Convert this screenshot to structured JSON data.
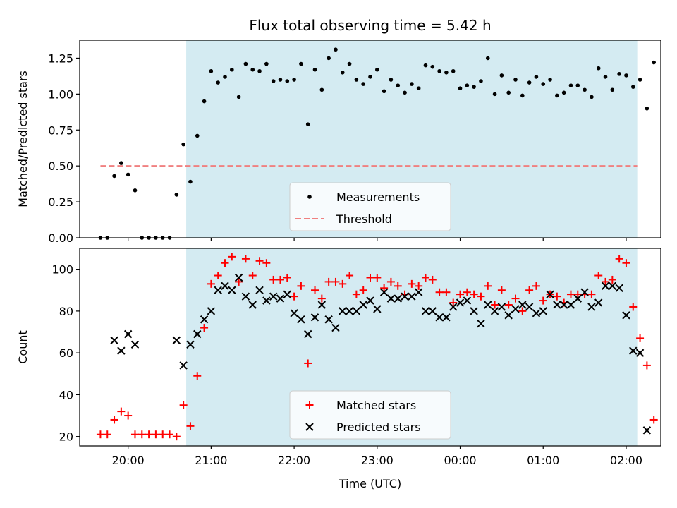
{
  "chart_data": [
    {
      "type": "scatter",
      "title": "Flux total observing time = 5.42 h",
      "xlabel": "",
      "ylabel": "Matched/Predicted stars",
      "ylim": [
        0,
        1.375
      ],
      "yticks": [
        "0.00",
        "0.25",
        "0.50",
        "0.75",
        "1.00",
        "1.25"
      ],
      "ytick_values": [
        0,
        0.25,
        0.5,
        0.75,
        1.0,
        1.25
      ],
      "xlim": [
        "19:25",
        "02:25"
      ],
      "xticks": [
        "20:00",
        "21:00",
        "22:00",
        "23:00",
        "00:00",
        "01:00",
        "02:00"
      ],
      "shaded_interval": [
        "20:42",
        "02:08"
      ],
      "shade_color": "#d4ebf2",
      "threshold": {
        "name": "Threshold",
        "value": 0.5,
        "x": [
          "19:40",
          "02:08"
        ],
        "color": "#f08080"
      },
      "legend": {
        "position": "lower center",
        "entries": [
          "Measurements",
          "Threshold"
        ]
      },
      "series": [
        {
          "name": "Measurements",
          "marker": "dot",
          "color": "#000000",
          "points": [
            [
              "19:40",
              0.0
            ],
            [
              "19:45",
              0.0
            ],
            [
              "19:50",
              0.43
            ],
            [
              "19:55",
              0.52
            ],
            [
              "20:00",
              0.44
            ],
            [
              "20:05",
              0.33
            ],
            [
              "20:10",
              0.0
            ],
            [
              "20:15",
              0.0
            ],
            [
              "20:20",
              0.0
            ],
            [
              "20:25",
              0.0
            ],
            [
              "20:30",
              0.0
            ],
            [
              "20:35",
              0.3
            ],
            [
              "20:40",
              0.65
            ],
            [
              "20:45",
              0.39
            ],
            [
              "20:50",
              0.71
            ],
            [
              "20:55",
              0.95
            ],
            [
              "21:00",
              1.16
            ],
            [
              "21:05",
              1.08
            ],
            [
              "21:10",
              1.12
            ],
            [
              "21:15",
              1.17
            ],
            [
              "21:20",
              0.98
            ],
            [
              "21:25",
              1.21
            ],
            [
              "21:30",
              1.17
            ],
            [
              "21:35",
              1.16
            ],
            [
              "21:40",
              1.21
            ],
            [
              "21:45",
              1.09
            ],
            [
              "21:50",
              1.1
            ],
            [
              "21:55",
              1.09
            ],
            [
              "22:00",
              1.1
            ],
            [
              "22:05",
              1.21
            ],
            [
              "22:10",
              0.79
            ],
            [
              "22:15",
              1.17
            ],
            [
              "22:20",
              1.03
            ],
            [
              "22:25",
              1.25
            ],
            [
              "22:30",
              1.31
            ],
            [
              "22:35",
              1.15
            ],
            [
              "22:40",
              1.21
            ],
            [
              "22:45",
              1.1
            ],
            [
              "22:50",
              1.07
            ],
            [
              "22:55",
              1.12
            ],
            [
              "23:00",
              1.17
            ],
            [
              "23:05",
              1.02
            ],
            [
              "23:10",
              1.1
            ],
            [
              "23:15",
              1.06
            ],
            [
              "23:20",
              1.01
            ],
            [
              "23:25",
              1.07
            ],
            [
              "23:30",
              1.04
            ],
            [
              "23:35",
              1.2
            ],
            [
              "23:40",
              1.19
            ],
            [
              "23:45",
              1.16
            ],
            [
              "23:50",
              1.15
            ],
            [
              "23:55",
              1.16
            ],
            [
              "00:00",
              1.04
            ],
            [
              "00:05",
              1.06
            ],
            [
              "00:10",
              1.05
            ],
            [
              "00:15",
              1.09
            ],
            [
              "00:20",
              1.25
            ],
            [
              "00:25",
              1.0
            ],
            [
              "00:30",
              1.13
            ],
            [
              "00:35",
              1.01
            ],
            [
              "00:40",
              1.1
            ],
            [
              "00:45",
              0.99
            ],
            [
              "00:50",
              1.08
            ],
            [
              "00:55",
              1.12
            ],
            [
              "01:00",
              1.07
            ],
            [
              "01:05",
              1.1
            ],
            [
              "01:10",
              0.99
            ],
            [
              "01:15",
              1.01
            ],
            [
              "01:20",
              1.06
            ],
            [
              "01:25",
              1.06
            ],
            [
              "01:30",
              1.03
            ],
            [
              "01:35",
              0.98
            ],
            [
              "01:40",
              1.18
            ],
            [
              "01:45",
              1.12
            ],
            [
              "01:50",
              1.03
            ],
            [
              "01:55",
              1.14
            ],
            [
              "02:00",
              1.13
            ],
            [
              "02:05",
              1.05
            ],
            [
              "02:10",
              1.1
            ],
            [
              "02:15",
              0.9
            ],
            [
              "02:20",
              1.22
            ]
          ]
        }
      ]
    },
    {
      "type": "scatter",
      "title": "",
      "xlabel": "Time (UTC)",
      "ylabel": "Count",
      "ylim": [
        15.5,
        110
      ],
      "yticks": [
        "20",
        "40",
        "60",
        "80",
        "100"
      ],
      "ytick_values": [
        20,
        40,
        60,
        80,
        100
      ],
      "xlim": [
        "19:25",
        "02:25"
      ],
      "xticks": [
        "20:00",
        "21:00",
        "22:00",
        "23:00",
        "00:00",
        "01:00",
        "02:00"
      ],
      "shaded_interval": [
        "20:42",
        "02:08"
      ],
      "shade_color": "#d4ebf2",
      "legend": {
        "position": "lower center",
        "entries": [
          "Matched stars",
          "Predicted stars"
        ]
      },
      "series": [
        {
          "name": "Matched stars",
          "marker": "plus",
          "color": "#ff0000",
          "points": [
            [
              "19:40",
              21
            ],
            [
              "19:45",
              21
            ],
            [
              "19:50",
              28
            ],
            [
              "19:55",
              32
            ],
            [
              "20:00",
              30
            ],
            [
              "20:05",
              21
            ],
            [
              "20:10",
              21
            ],
            [
              "20:15",
              21
            ],
            [
              "20:20",
              21
            ],
            [
              "20:25",
              21
            ],
            [
              "20:30",
              21
            ],
            [
              "20:35",
              20
            ],
            [
              "20:40",
              35
            ],
            [
              "20:45",
              25
            ],
            [
              "20:50",
              49
            ],
            [
              "20:55",
              72
            ],
            [
              "21:00",
              93
            ],
            [
              "21:05",
              97
            ],
            [
              "21:10",
              103
            ],
            [
              "21:15",
              106
            ],
            [
              "21:20",
              94
            ],
            [
              "21:25",
              105
            ],
            [
              "21:30",
              97
            ],
            [
              "21:35",
              104
            ],
            [
              "21:40",
              103
            ],
            [
              "21:45",
              95
            ],
            [
              "21:50",
              95
            ],
            [
              "21:55",
              96
            ],
            [
              "22:00",
              87
            ],
            [
              "22:05",
              92
            ],
            [
              "22:10",
              55
            ],
            [
              "22:15",
              90
            ],
            [
              "22:20",
              86
            ],
            [
              "22:25",
              94
            ],
            [
              "22:30",
              94
            ],
            [
              "22:35",
              93
            ],
            [
              "22:40",
              97
            ],
            [
              "22:45",
              88
            ],
            [
              "22:50",
              90
            ],
            [
              "22:55",
              96
            ],
            [
              "23:00",
              96
            ],
            [
              "23:05",
              91
            ],
            [
              "23:10",
              94
            ],
            [
              "23:15",
              92
            ],
            [
              "23:20",
              88
            ],
            [
              "23:25",
              93
            ],
            [
              "23:30",
              92
            ],
            [
              "23:35",
              96
            ],
            [
              "23:40",
              95
            ],
            [
              "23:45",
              89
            ],
            [
              "23:50",
              89
            ],
            [
              "23:55",
              84
            ],
            [
              "00:00",
              88
            ],
            [
              "00:05",
              89
            ],
            [
              "00:10",
              88
            ],
            [
              "00:15",
              87
            ],
            [
              "00:20",
              92
            ],
            [
              "00:25",
              83
            ],
            [
              "00:30",
              90
            ],
            [
              "00:35",
              83
            ],
            [
              "00:40",
              86
            ],
            [
              "00:45",
              80
            ],
            [
              "00:50",
              90
            ],
            [
              "00:55",
              92
            ],
            [
              "01:00",
              85
            ],
            [
              "01:05",
              88
            ],
            [
              "01:10",
              87
            ],
            [
              "01:15",
              84
            ],
            [
              "01:20",
              88
            ],
            [
              "01:25",
              88
            ],
            [
              "01:30",
              88
            ],
            [
              "01:35",
              88
            ],
            [
              "01:40",
              97
            ],
            [
              "01:45",
              94
            ],
            [
              "01:50",
              95
            ],
            [
              "01:55",
              105
            ],
            [
              "02:00",
              103
            ],
            [
              "02:05",
              82
            ],
            [
              "02:10",
              67
            ],
            [
              "02:15",
              54
            ],
            [
              "02:20",
              28
            ]
          ]
        },
        {
          "name": "Predicted stars",
          "marker": "x",
          "color": "#000000",
          "points": [
            [
              "19:50",
              66
            ],
            [
              "19:55",
              61
            ],
            [
              "20:00",
              69
            ],
            [
              "20:05",
              64
            ],
            [
              "20:35",
              66
            ],
            [
              "20:40",
              54
            ],
            [
              "20:45",
              64
            ],
            [
              "20:50",
              69
            ],
            [
              "20:55",
              76
            ],
            [
              "21:00",
              80
            ],
            [
              "21:05",
              90
            ],
            [
              "21:10",
              92
            ],
            [
              "21:15",
              90
            ],
            [
              "21:20",
              96
            ],
            [
              "21:25",
              87
            ],
            [
              "21:30",
              83
            ],
            [
              "21:35",
              90
            ],
            [
              "21:40",
              85
            ],
            [
              "21:45",
              87
            ],
            [
              "21:50",
              86
            ],
            [
              "21:55",
              88
            ],
            [
              "22:00",
              79
            ],
            [
              "22:05",
              76
            ],
            [
              "22:10",
              69
            ],
            [
              "22:15",
              77
            ],
            [
              "22:20",
              83
            ],
            [
              "22:25",
              76
            ],
            [
              "22:30",
              72
            ],
            [
              "22:35",
              80
            ],
            [
              "22:40",
              80
            ],
            [
              "22:45",
              80
            ],
            [
              "22:50",
              83
            ],
            [
              "22:55",
              85
            ],
            [
              "23:00",
              81
            ],
            [
              "23:05",
              89
            ],
            [
              "23:10",
              86
            ],
            [
              "23:15",
              86
            ],
            [
              "23:20",
              87
            ],
            [
              "23:25",
              87
            ],
            [
              "23:30",
              89
            ],
            [
              "23:35",
              80
            ],
            [
              "23:40",
              80
            ],
            [
              "23:45",
              77
            ],
            [
              "23:50",
              77
            ],
            [
              "23:55",
              82
            ],
            [
              "00:00",
              84
            ],
            [
              "00:05",
              85
            ],
            [
              "00:10",
              80
            ],
            [
              "00:15",
              74
            ],
            [
              "00:20",
              83
            ],
            [
              "00:25",
              80
            ],
            [
              "00:30",
              82
            ],
            [
              "00:35",
              78
            ],
            [
              "00:40",
              81
            ],
            [
              "00:45",
              83
            ],
            [
              "00:50",
              82
            ],
            [
              "00:55",
              79
            ],
            [
              "01:00",
              80
            ],
            [
              "01:05",
              88
            ],
            [
              "01:10",
              83
            ],
            [
              "01:15",
              83
            ],
            [
              "01:20",
              83
            ],
            [
              "01:25",
              86
            ],
            [
              "01:30",
              89
            ],
            [
              "01:35",
              82
            ],
            [
              "01:40",
              84
            ],
            [
              "01:45",
              92
            ],
            [
              "01:50",
              92
            ],
            [
              "01:55",
              91
            ],
            [
              "02:00",
              78
            ],
            [
              "02:05",
              61
            ],
            [
              "02:10",
              60
            ],
            [
              "02:15",
              23
            ]
          ]
        }
      ]
    }
  ]
}
